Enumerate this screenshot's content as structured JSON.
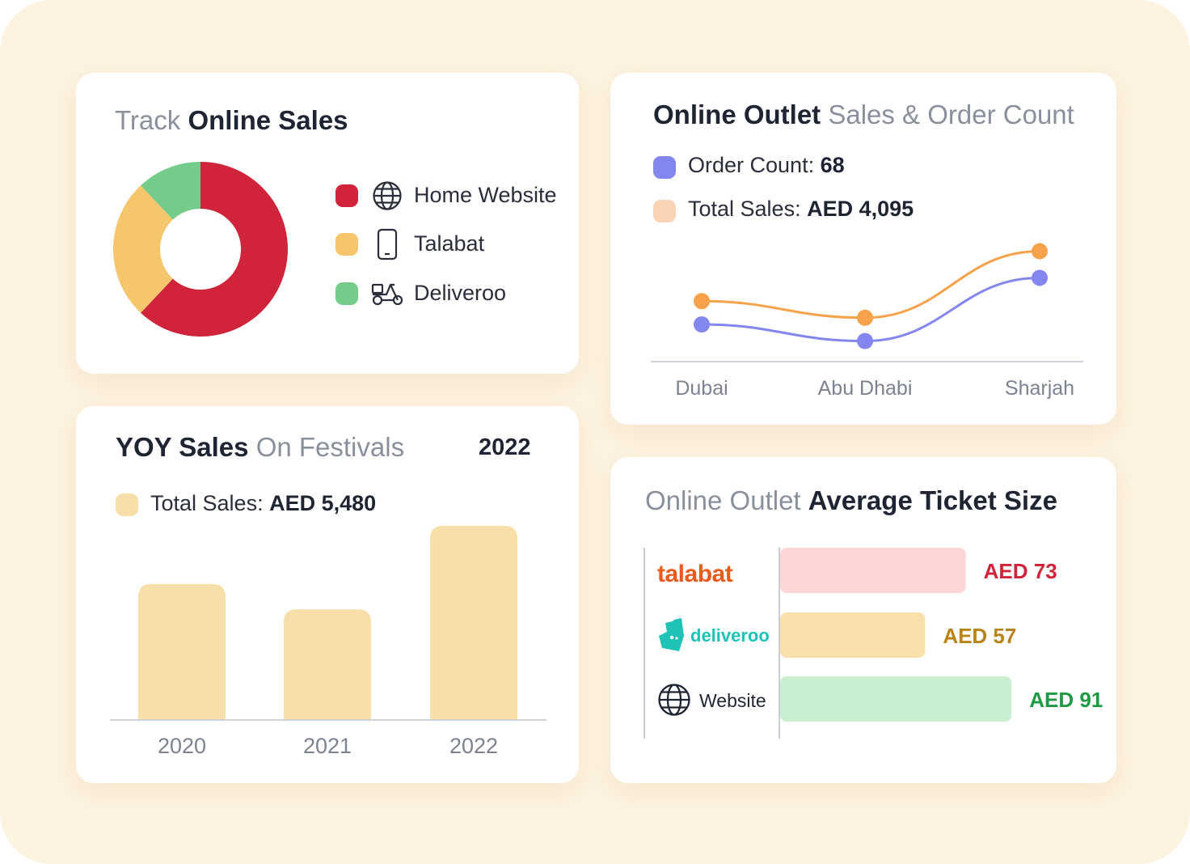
{
  "colors": {
    "red": "#d0243a",
    "yellow": "#f6c66c",
    "green": "#74cc8a",
    "purple": "#8486f0",
    "orange": "#f6a24a",
    "peach": "#fbd3b5",
    "bar_cream": "#f8dfa9",
    "talabat": "#ea5b1b",
    "deliveroo": "#1fc2b6"
  },
  "card1": {
    "title_light": "Track",
    "title_bold": "Online Sales",
    "legend": [
      {
        "label": "Home Website",
        "icon": "globe-icon",
        "color": "#d0243a"
      },
      {
        "label": "Talabat",
        "icon": "mobile-phone-icon",
        "color": "#f6c66c"
      },
      {
        "label": "Deliveroo",
        "icon": "delivery-scooter-icon",
        "color": "#74cc8a"
      }
    ]
  },
  "card2": {
    "title_bold": "Online Outlet",
    "title_light": "Sales & Order Count",
    "order_label": "Order Count: ",
    "order_value": "68",
    "sales_label": "Total Sales: ",
    "sales_value": "AED 4,095"
  },
  "card3": {
    "title_bold": "YOY Sales",
    "title_light": "On Festivals",
    "year": "2022",
    "sales_label": "Total Sales: ",
    "sales_value": "AED 5,480"
  },
  "card4": {
    "title_light": "Online Outlet",
    "title_bold": "Average Ticket Size",
    "brand_talabat": "talabat",
    "brand_deliveroo": "deliveroo",
    "brand_website": "Website"
  },
  "chart_data": [
    {
      "type": "pie",
      "categories": [
        "Home Website",
        "Talabat",
        "Deliveroo"
      ],
      "values": [
        62,
        26,
        12
      ],
      "colors": [
        "#d0243a",
        "#f6c66c",
        "#74cc8a"
      ],
      "title": "Track Online Sales"
    },
    {
      "type": "line",
      "title": "Online Outlet Sales & Order Count",
      "categories": [
        "Dubai",
        "Abu Dhabi",
        "Sharjah"
      ],
      "series": [
        {
          "name": "Total Sales",
          "values": [
            55,
            50,
            70
          ],
          "color": "#f6a24a"
        },
        {
          "name": "Order Count",
          "values": [
            48,
            43,
            62
          ],
          "color": "#8486f0"
        }
      ],
      "ylim": [
        30,
        75
      ],
      "grid": false
    },
    {
      "type": "bar",
      "title": "YOY Sales On Festivals",
      "categories": [
        "2020",
        "2021",
        "2022"
      ],
      "values": [
        70,
        57,
        100
      ],
      "ylim": [
        0,
        100
      ],
      "color": "#f8dfa9"
    },
    {
      "type": "bar",
      "orientation": "horizontal",
      "title": "Online Outlet Average Ticket Size",
      "categories": [
        "talabat",
        "deliveroo",
        "Website"
      ],
      "values": [
        73,
        57,
        91
      ],
      "value_labels": [
        "AED 73",
        "AED 57",
        "AED 91"
      ],
      "bar_colors": [
        "#fcd7d6",
        "#f9e0ac",
        "#c9efd3"
      ],
      "label_colors": [
        "#d0243a",
        "#b88417",
        "#1e9a45"
      ],
      "xlim": [
        0,
        96
      ]
    }
  ]
}
